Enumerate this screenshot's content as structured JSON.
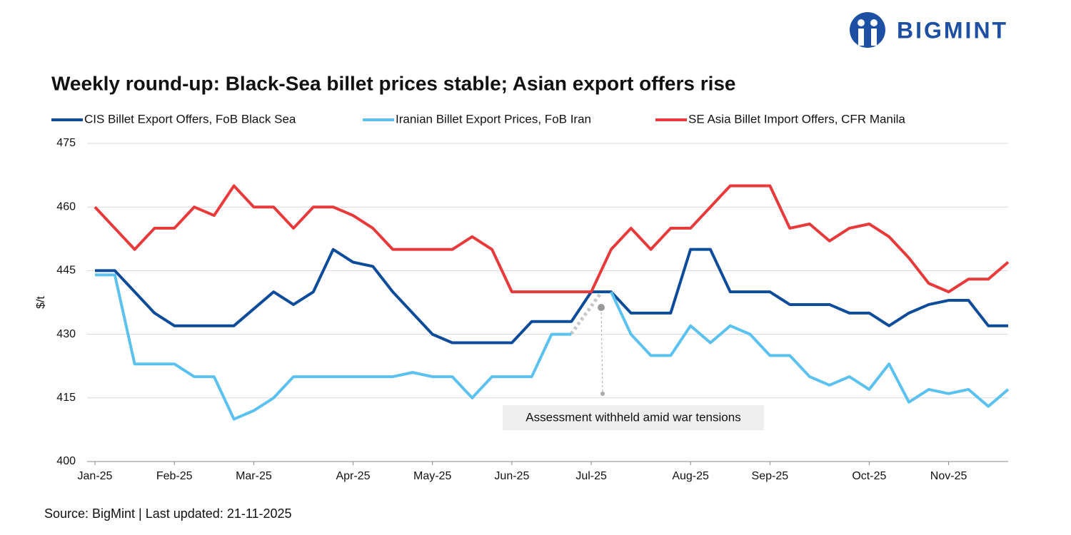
{
  "brand": "BIGMINT",
  "chart_data": {
    "type": "line",
    "title": "Weekly round-up: Black-Sea billet prices stable; Asian export offers rise",
    "y_label": "$/t",
    "source": "Source: BigMint | Last updated: 21-11-2025",
    "annotation": "Assessment withheld amid  war tensions",
    "legend": "top",
    "grid": true,
    "ylim": [
      400,
      475
    ],
    "yticks": [
      400,
      415,
      430,
      445,
      460,
      475
    ],
    "categories": [
      "Jan-25",
      null,
      null,
      null,
      "Feb-25",
      null,
      null,
      null,
      "Mar-25",
      null,
      null,
      null,
      null,
      "Apr-25",
      null,
      null,
      null,
      "May-25",
      null,
      null,
      null,
      "Jun-25",
      null,
      null,
      null,
      "Jul-25",
      null,
      null,
      null,
      null,
      "Aug-25",
      null,
      null,
      null,
      "Sep-25",
      null,
      null,
      null,
      null,
      "Oct-25",
      null,
      null,
      null,
      "Nov-25",
      null,
      null,
      null
    ],
    "series": [
      {
        "name": "CIS Billet Export Offers, FoB Black Sea",
        "color": "#0d4c9a",
        "values": [
          445,
          445,
          440,
          435,
          432,
          432,
          432,
          432,
          436,
          440,
          437,
          440,
          450,
          447,
          446,
          440,
          435,
          430,
          428,
          428,
          428,
          428,
          433,
          433,
          433,
          440,
          440,
          435,
          435,
          435,
          450,
          450,
          440,
          440,
          440,
          437,
          437,
          437,
          435,
          435,
          432,
          435,
          437,
          438,
          438,
          432,
          432
        ]
      },
      {
        "name": "Iranian Billet Export Prices, FoB Iran",
        "color": "#5bc2f0",
        "values": [
          444,
          444,
          423,
          423,
          423,
          420,
          420,
          410,
          412,
          415,
          420,
          420,
          420,
          420,
          420,
          420,
          421,
          420,
          420,
          415,
          420,
          420,
          420,
          430,
          430,
          null,
          440,
          430,
          425,
          425,
          432,
          428,
          432,
          430,
          425,
          425,
          420,
          418,
          420,
          417,
          423,
          414,
          417,
          416,
          417,
          413,
          417
        ]
      },
      {
        "name": "SE Asia Billet Import Offers, CFR Manila",
        "color": "#e83a3a",
        "values": [
          460,
          455,
          450,
          455,
          455,
          460,
          458,
          465,
          460,
          460,
          455,
          460,
          460,
          458,
          455,
          450,
          450,
          450,
          450,
          453,
          450,
          440,
          440,
          440,
          440,
          440,
          450,
          455,
          450,
          455,
          455,
          460,
          465,
          465,
          465,
          455,
          456,
          452,
          455,
          456,
          453,
          448,
          442,
          440,
          443,
          443,
          447
        ]
      }
    ]
  }
}
